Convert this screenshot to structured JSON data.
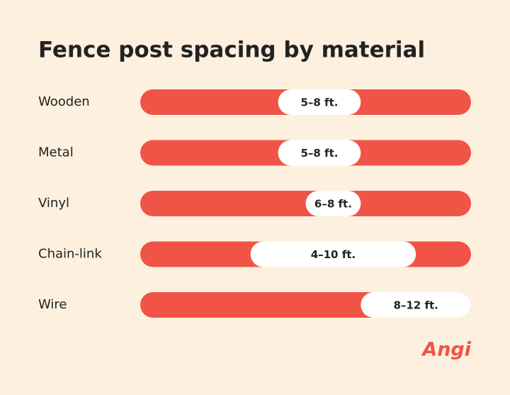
{
  "chart_data": {
    "type": "range-bar",
    "title": "Fence post spacing by material",
    "categories": [
      "Wooden",
      "Metal",
      "Vinyl",
      "Chain-link",
      "Wire"
    ],
    "low": [
      5,
      5,
      6,
      4,
      8
    ],
    "high": [
      8,
      8,
      8,
      10,
      12
    ],
    "value_labels": [
      "5–8 ft.",
      "5–8 ft.",
      "6–8 ft.",
      "4–10 ft.",
      "8–12 ft."
    ],
    "xlim": [
      0,
      12
    ],
    "track_color": "#ef5446",
    "range_color": "#ffffff",
    "brand": "Angi"
  }
}
